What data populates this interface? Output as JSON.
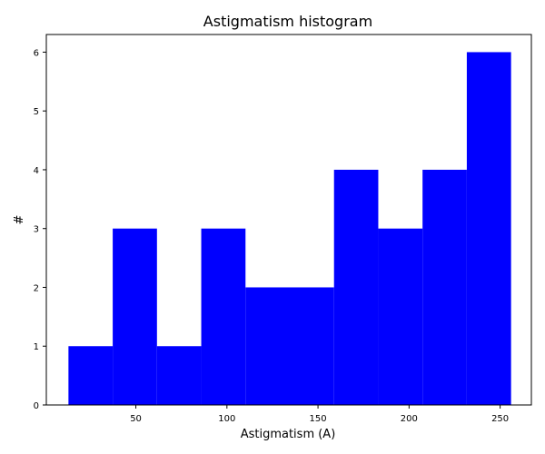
{
  "chart_data": {
    "type": "bar",
    "title": "Astigmatism histogram",
    "xlabel": "Astigmatism (A)",
    "ylabel": "#",
    "bin_edges": [
      13,
      37.3,
      61.6,
      85.9,
      110.2,
      134.5,
      158.8,
      183.1,
      207.4,
      231.7,
      256
    ],
    "values": [
      1,
      3,
      1,
      3,
      2,
      2,
      4,
      3,
      4,
      6
    ],
    "xlim": [
      0.85,
      267.15
    ],
    "ylim": [
      0,
      6.3
    ],
    "xticks": [
      50,
      100,
      150,
      200,
      250
    ],
    "yticks": [
      0,
      1,
      2,
      3,
      4,
      5,
      6
    ],
    "bar_color": "#0000ff",
    "grid": false,
    "legend": false
  }
}
